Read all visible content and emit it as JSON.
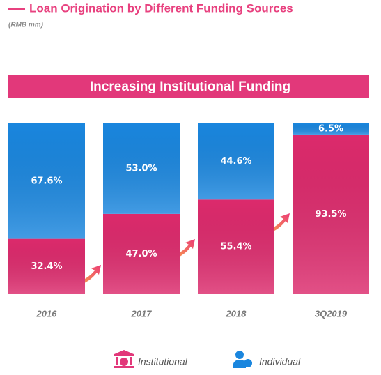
{
  "chart_data": {
    "type": "stacked-bar",
    "title": "Loan Origination by Different Funding Sources",
    "subtitle": "(RMB mm)",
    "annotation": "Increasing Institutional Funding",
    "categories": [
      "2016",
      "2017",
      "2018",
      "3Q2019"
    ],
    "ylim": [
      0,
      100
    ],
    "series": [
      {
        "name": "Institutional",
        "color": "#dc2a6c",
        "values": [
          32.4,
          47.0,
          55.4,
          93.5
        ],
        "value_labels": [
          "32.4%",
          "47.0%",
          "55.4%",
          "93.5%"
        ]
      },
      {
        "name": "Individual",
        "color": "#1a86de",
        "values": [
          67.6,
          53.0,
          44.6,
          6.5
        ],
        "value_labels": [
          "67.6%",
          "53.0%",
          "44.6%",
          "6.5%"
        ]
      }
    ]
  }
}
